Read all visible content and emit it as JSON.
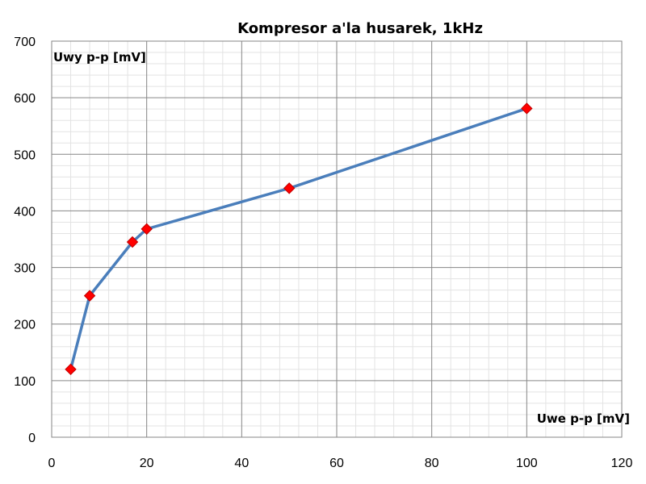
{
  "chart_data": {
    "type": "line",
    "title": "Kompresor a'la husarek, 1kHz",
    "xlabel": "Uwe p-p [mV]",
    "ylabel": "Uwy p-p [mV]",
    "xlim": [
      0,
      120
    ],
    "ylim": [
      0,
      700
    ],
    "x_ticks": [
      0,
      20,
      40,
      60,
      80,
      100,
      120
    ],
    "y_ticks": [
      0,
      100,
      200,
      300,
      400,
      500,
      600,
      700
    ],
    "x_minor_step": 4,
    "y_minor_step": 20,
    "grid": true,
    "series": [
      {
        "x": [
          4,
          8,
          17,
          20,
          50,
          100
        ],
        "y": [
          120,
          250,
          345,
          368,
          440,
          581
        ],
        "line_color": "#4A7EBB",
        "marker_color": "#FF0000",
        "marker_edge_color": "#C00000"
      }
    ]
  }
}
